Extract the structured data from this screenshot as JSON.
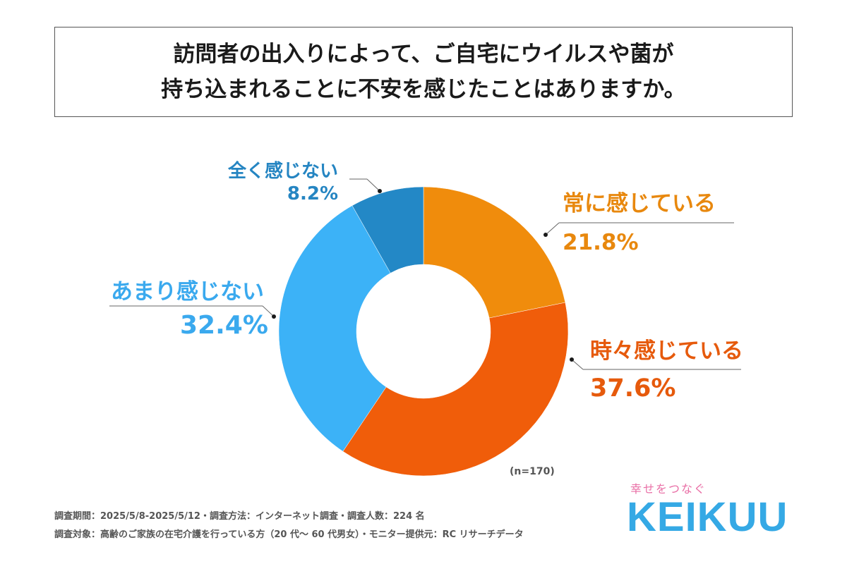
{
  "title": {
    "line1": "訪問者の出入りによって、ご自宅にウイルスや菌が",
    "line2": "持ち込まれることに不安を感じたことはありますか。"
  },
  "chart_data": {
    "type": "pie",
    "donut": true,
    "start_angle_deg": 0,
    "direction": "clockwise",
    "categories": [
      "常に感じている",
      "時々感じている",
      "あまり感じない",
      "全く感じない"
    ],
    "values": [
      21.8,
      37.6,
      32.4,
      8.2
    ],
    "labels": [
      "21.8%",
      "37.6%",
      "32.4%",
      "8.2%"
    ],
    "colors": [
      "#F08C0C",
      "#F05D0A",
      "#3CB2F7",
      "#2388C6"
    ],
    "note": "(n=170)"
  },
  "footer": {
    "line1": "調査期間：2025/5/8-2025/5/12・調査方法：インターネット調査・調査人数：224 名",
    "line2": "調査対象：高齢のご家族の在宅介護を行っている方（20 代〜 60 代男女）・モニター提供元：RC リサーチデータ"
  },
  "brand": {
    "tagline": "幸せをつなぐ",
    "name": "KEIKUU"
  }
}
